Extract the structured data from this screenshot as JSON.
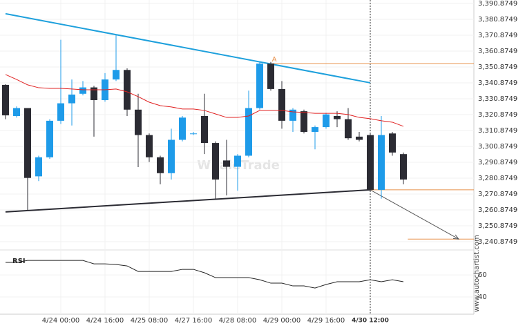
{
  "chart_data": {
    "type": "candlestick",
    "categories": [
      null,
      null,
      null,
      null,
      null,
      "4/24 00:00",
      null,
      null,
      null,
      "4/24 16:00",
      null,
      null,
      null,
      "4/25 08:00",
      null,
      null,
      null,
      "4/27 16:00",
      null,
      null,
      null,
      "4/28 08:00",
      null,
      null,
      null,
      "4/29 00:00",
      null,
      null,
      null,
      "4/29 16:00",
      null,
      null,
      null,
      "4/30 12:00",
      null,
      null,
      null
    ],
    "open": [
      3339.6,
      3320,
      3325,
      3282,
      3294,
      3317,
      3328,
      3334,
      3338,
      3330,
      3343,
      3349,
      3324,
      3308,
      3294,
      3284,
      3305,
      3309,
      3320,
      3303,
      3292,
      3288,
      3295,
      3325,
      3353,
      3337,
      3317,
      3323,
      3310,
      3313,
      3320,
      3318,
      3307,
      3308,
      3273.5,
      3309,
      3296
    ],
    "high": [
      3340,
      3326,
      3325,
      3295,
      3318,
      3368,
      3343,
      3342,
      3339,
      3347,
      3371,
      3350,
      3334,
      3309,
      3295,
      3312,
      3320,
      3310,
      3334,
      3304,
      3305,
      3296,
      3336,
      3354,
      3354,
      3342,
      3325,
      3324,
      3314,
      3322,
      3323,
      3325,
      3310,
      3309,
      3320,
      3310,
      3297
    ],
    "low": [
      3318,
      3319,
      3260.4,
      3279,
      3293,
      3315,
      3314,
      3333,
      3307,
      3329,
      3342,
      3320,
      3287.8,
      3291,
      3277,
      3280,
      3304,
      3308,
      3296,
      3268,
      3270,
      3273,
      3294,
      3324,
      3336,
      3312,
      3310,
      3309,
      3299,
      3312,
      3313,
      3305,
      3304,
      3273,
      3268,
      3295,
      3277
    ],
    "close": [
      3320.4,
      3325,
      3281,
      3294,
      3317,
      3328,
      3333.5,
      3338,
      3330,
      3343,
      3349,
      3324,
      3308,
      3294,
      3284,
      3305,
      3319,
      3309,
      3303,
      3280,
      3288,
      3295,
      3325,
      3353,
      3337,
      3317,
      3324,
      3310,
      3313,
      3321,
      3318,
      3306,
      3305,
      3273.5,
      3308,
      3297,
      3280
    ],
    "up_color": "#1e9be9",
    "down_color": "#2b2b33",
    "ma": {
      "color": "#e02020",
      "values": [
        3346.1,
        3343.0,
        3339.6,
        3337.8,
        3337.4,
        3337.4,
        3337.0,
        3336.5,
        3336.5,
        3336.5,
        3337.0,
        3335.2,
        3332.2,
        3328.7,
        3326.5,
        3325.7,
        3324.4,
        3324.4,
        3323.5,
        3321.3,
        3319.1,
        3319.1,
        3320.0,
        3323.5,
        3323.5,
        3323.5,
        3322.6,
        3322.2,
        3321.7,
        3321.7,
        3321.7,
        3320.9,
        3319.1,
        3318.3,
        3317.0,
        3316.1,
        3313.5
      ]
    },
    "ylim": [
      3236.5,
      3393.05
    ],
    "yticks": [
      {
        "value": 3390.8749,
        "label": "3,390.8749"
      },
      {
        "value": 3380.8749,
        "label": "3,380.8749"
      },
      {
        "value": 3370.8749,
        "label": "3,370.8749"
      },
      {
        "value": 3360.8749,
        "label": "3,360.8749"
      },
      {
        "value": 3350.8749,
        "label": "3,350.8749"
      },
      {
        "value": 3340.8749,
        "label": "3,340.8749"
      },
      {
        "value": 3330.8749,
        "label": "3,330.8749"
      },
      {
        "value": 3320.8749,
        "label": "3,320.8749"
      },
      {
        "value": 3310.8749,
        "label": "3,310.8749"
      },
      {
        "value": 3300.8749,
        "label": "3,300.8749"
      },
      {
        "value": 3290.8749,
        "label": "3,290.8749"
      },
      {
        "value": 3280.8749,
        "label": "3,280.8749"
      },
      {
        "value": 3270.8749,
        "label": "3,270.8749"
      },
      {
        "value": 3260.8749,
        "label": "3,260.8749"
      },
      {
        "value": 3250.8749,
        "label": "3,250.8749"
      },
      {
        "value": 3240.8749,
        "label": "3,240.8749"
      }
    ],
    "trendlines": [
      {
        "color": "#1ea0dc",
        "x": [
          0,
          33
        ],
        "y": [
          3384.4,
          3340.9
        ]
      },
      {
        "color": "#2b2b33",
        "x": [
          0,
          33
        ],
        "y": [
          3259.6,
          3273.5
        ]
      }
    ],
    "levels": [
      {
        "color": "#e8904a",
        "x": [
          24,
          42.4
        ],
        "y": 3353
      },
      {
        "color": "#e8904a",
        "x": [
          33,
          42.4
        ],
        "y": 3273.5
      },
      {
        "color": "#e8904a",
        "x": [
          36.4,
          42.4
        ],
        "y": 3242.5
      }
    ],
    "arrow": {
      "x": [
        33,
        41
      ],
      "y": [
        3273.5,
        3242.5
      ]
    },
    "point_label": {
      "text": "A",
      "x": 24,
      "y": 3353
    },
    "marker_x": 33,
    "watermark": "WhaleTrade",
    "site": "www.autochartist.com",
    "rsi": {
      "label": "RSI",
      "ylim": [
        24.4,
        83.8
      ],
      "yticks": [
        60,
        40
      ],
      "values": [
        71.3,
        71.3,
        73.1,
        73.1,
        73.1,
        73.1,
        73.1,
        73.1,
        70,
        70,
        69.4,
        68.1,
        63.1,
        63.1,
        63.1,
        63.1,
        65,
        65,
        61.9,
        57.5,
        57.5,
        57.5,
        57.5,
        55.6,
        52.5,
        52.5,
        50,
        50,
        48.1,
        51.3,
        53.8,
        53.8,
        53.8,
        55.6,
        53.8,
        55.6,
        53.8
      ]
    }
  }
}
